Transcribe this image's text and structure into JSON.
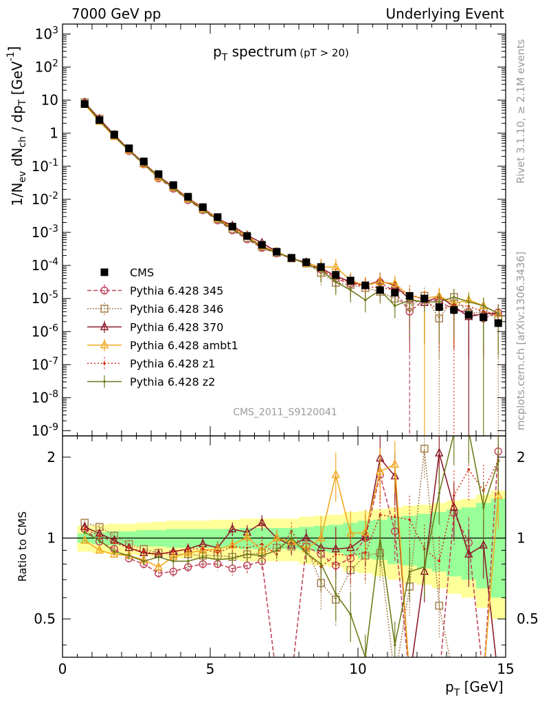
{
  "header": {
    "left": "7000 GeV pp",
    "right": "Underlying Event"
  },
  "side_labels": {
    "rivet": "Rivet 3.1.10, ≥ 2.1M events",
    "mcplots": "mcplots.cern.ch [arXiv:1306.3436]"
  },
  "colors": {
    "CMS": "#000000",
    "p345": "#c0445a",
    "p346": "#a68150",
    "p370": "#8b1a2a",
    "ambt1": "#f0a820",
    "z1": "#d42a10",
    "z2": "#6f7a1a",
    "band_outer": "#ffff99",
    "band_inner": "#99ff99"
  },
  "chart_data": [
    {
      "type": "line",
      "title": "pT spectrum",
      "title_main": "p",
      "title_sub": "T",
      "title_rest": " spectrum",
      "title_cut": "(pT > 20)",
      "ylabel": "1/N_ev dN_ch / dp_T [GeV^-1]",
      "y_scale": "log",
      "ylim": [
        7e-10,
        2000
      ],
      "xlim": [
        0,
        15
      ],
      "ytick_labels": [
        "10^-9",
        "10^-8",
        "10^-7",
        "10^-6",
        "10^-5",
        "10^-4",
        "10^-3",
        "10^-2",
        "10^-1",
        "1",
        "10",
        "10^2",
        "10^3"
      ],
      "analysis_label": "CMS_2011_S9120041",
      "legend_position": "middle-left",
      "x": [
        0.75,
        1.25,
        1.75,
        2.25,
        2.75,
        3.25,
        3.75,
        4.25,
        4.75,
        5.25,
        5.75,
        6.25,
        6.75,
        7.25,
        7.75,
        8.25,
        8.75,
        9.25,
        9.75,
        10.25,
        10.75,
        11.25,
        11.75,
        12.25,
        12.75,
        13.25,
        13.75,
        14.25,
        14.75
      ],
      "series": [
        {
          "name": "CMS",
          "key": "CMS",
          "values": [
            7.6,
            2.5,
            0.9,
            0.35,
            0.14,
            0.058,
            0.027,
            0.012,
            0.0058,
            0.0029,
            0.0015,
            0.00078,
            0.00042,
            0.00026,
            0.00017,
            0.000125,
            9e-05,
            5.2e-05,
            3.5e-05,
            2.5e-05,
            1.8e-05,
            1.5e-05,
            1.2e-05,
            1e-05,
            5.5e-06,
            4.5e-06,
            3.2e-06,
            2.7e-06,
            1.8e-06
          ]
        },
        {
          "name": "Pythia 6.428 345",
          "key": "p345",
          "values": [
            8.1,
            2.45,
            0.84,
            0.29,
            0.115,
            0.043,
            0.021,
            0.0094,
            0.0047,
            0.0023,
            0.00115,
            0.00062,
            0.00034,
            0.00023,
            0.000165,
            0.000115,
            7.5e-05,
            4e-05,
            2.8e-05,
            2.5e-05,
            3.1e-05,
            1.6e-05,
            4e-06,
            9.2e-06,
            8.5e-06,
            4.4e-06,
            4e-06,
            2.5e-06,
            3.8e-06
          ]
        },
        {
          "name": "Pythia 6.428 346",
          "key": "p346",
          "values": [
            8.6,
            2.75,
            0.92,
            0.33,
            0.125,
            0.051,
            0.023,
            0.0105,
            0.005,
            0.0025,
            0.00128,
            0.00068,
            0.00037,
            0.00024,
            0.000165,
            0.000115,
            6e-05,
            3e-05,
            2.6e-05,
            2.1e-05,
            1.6e-05,
            1e-05,
            5.5e-06,
            1.2e-05,
            2.5e-06,
            1.1e-05,
            3.5e-06,
            4e-06,
            2.5e-06
          ]
        },
        {
          "name": "Pythia 6.428 370",
          "key": "p370",
          "values": [
            8.4,
            2.7,
            0.88,
            0.31,
            0.122,
            0.05,
            0.024,
            0.0109,
            0.0055,
            0.0026,
            0.0016,
            0.00082,
            0.00048,
            0.00026,
            0.00016,
            0.000125,
            8.2e-05,
            4.8e-05,
            3.2e-05,
            2.5e-05,
            3.4e-05,
            2.5e-05,
            9.5e-06,
            7.5e-06,
            1.15e-05,
            5.8e-06,
            2.8e-06,
            3.5e-06,
            3.6e-06
          ]
        },
        {
          "name": "Pythia 6.428 ambt1",
          "key": "ambt1",
          "values": [
            7.4,
            2.25,
            0.78,
            0.3,
            0.115,
            0.045,
            0.023,
            0.0105,
            0.0052,
            0.0026,
            0.0014,
            0.00078,
            0.00038,
            0.00026,
            0.000165,
            0.000115,
            9e-05,
            9e-05,
            3.5e-05,
            2.5e-05,
            3.2e-05,
            2.8e-05,
            1.2e-05,
            1e-05,
            1.2e-05,
            7e-06,
            9e-06,
            6e-06,
            3.5e-06
          ]
        },
        {
          "name": "Pythia 6.428 z1",
          "key": "z1",
          "values": [
            8.2,
            2.6,
            0.86,
            0.32,
            0.125,
            0.05,
            0.024,
            0.0108,
            0.0053,
            0.0026,
            0.0014,
            0.00072,
            0.0004,
            0.00023,
            0.00018,
            0.00011,
            7e-05,
            4.5e-05,
            3e-05,
            2.2e-05,
            2.2e-05,
            1.8e-05,
            1.4e-05,
            9e-06,
            4.5e-06,
            6.5e-06,
            5.8e-06,
            4e-06,
            3.5e-06
          ]
        },
        {
          "name": "Pythia 6.428 z2",
          "key": "z2",
          "values": [
            8.0,
            2.45,
            0.8,
            0.3,
            0.115,
            0.049,
            0.022,
            0.0099,
            0.0049,
            0.0024,
            0.00125,
            0.00068,
            0.00036,
            0.00024,
            0.00017,
            0.00011,
            7.2e-05,
            3.2e-05,
            1.8e-05,
            9e-06,
            1.8e-05,
            6e-06,
            9e-06,
            7.8e-06,
            8e-06,
            1.1e-05,
            8e-06,
            6e-06,
            3.5e-06
          ]
        }
      ]
    },
    {
      "type": "line",
      "title": "",
      "ylabel": "Ratio to CMS",
      "xlabel": "p_T [GeV]",
      "y_scale": "log",
      "ylim": [
        0.36,
        2.4
      ],
      "xlim": [
        0,
        15
      ],
      "xtick_labels": [
        "0",
        "5",
        "10",
        "15"
      ],
      "ytick_labels": [
        "0.5",
        "1",
        "2"
      ],
      "x": [
        0.75,
        1.25,
        1.75,
        2.25,
        2.75,
        3.25,
        3.75,
        4.25,
        4.75,
        5.25,
        5.75,
        6.25,
        6.75,
        7.25,
        7.75,
        8.25,
        8.75,
        9.25,
        9.75,
        10.25,
        10.75,
        11.25,
        11.75,
        12.25,
        12.75,
        13.25,
        13.75,
        14.25,
        14.75
      ],
      "bands": {
        "outer": [
          0.11,
          0.12,
          0.13,
          0.13,
          0.14,
          0.15,
          0.16,
          0.16,
          0.16,
          0.17,
          0.17,
          0.18,
          0.18,
          0.18,
          0.18,
          0.2,
          0.21,
          0.22,
          0.25,
          0.26,
          0.28,
          0.3,
          0.32,
          0.33,
          0.35,
          0.38,
          0.4,
          0.45,
          0.5
        ],
        "inner": [
          0.04,
          0.05,
          0.06,
          0.06,
          0.07,
          0.07,
          0.08,
          0.08,
          0.08,
          0.08,
          0.08,
          0.09,
          0.09,
          0.09,
          0.09,
          0.1,
          0.11,
          0.12,
          0.14,
          0.16,
          0.17,
          0.2,
          0.21,
          0.23,
          0.25,
          0.28,
          0.3,
          0.35,
          0.4
        ]
      },
      "series": [
        {
          "name": "Pythia 6.428 345",
          "key": "p345",
          "values": [
            1.08,
            0.97,
            0.91,
            0.84,
            0.8,
            0.74,
            0.75,
            0.78,
            0.8,
            0.8,
            0.77,
            0.79,
            0.82,
            null,
            null,
            0.93,
            0.87,
            0.79,
            0.84,
            1.0,
            1.72,
            1.06,
            null,
            null,
            null,
            1.24,
            0.96,
            null,
            2.1
          ]
        },
        {
          "name": "Pythia 6.428 346",
          "key": "p346",
          "values": [
            1.14,
            1.1,
            1.02,
            0.95,
            0.91,
            0.88,
            0.87,
            0.87,
            0.86,
            0.86,
            0.85,
            0.87,
            0.88,
            0.92,
            0.93,
            0.93,
            0.68,
            0.59,
            0.76,
            0.86,
            0.88,
            null,
            0.66,
            2.15,
            0.56,
            null,
            null,
            null,
            null
          ]
        },
        {
          "name": "Pythia 6.428 370",
          "key": "p370",
          "values": [
            1.1,
            1.04,
            0.98,
            0.92,
            0.88,
            0.87,
            0.89,
            0.91,
            0.95,
            0.92,
            1.08,
            1.05,
            1.14,
            1.0,
            0.94,
            1.0,
            0.92,
            0.91,
            0.92,
            1.01,
            1.98,
            1.7,
            null,
            0.75,
            2.07,
            1.3,
            0.87,
            0.94,
            null
          ]
        },
        {
          "name": "Pythia 6.428 ambt1",
          "key": "ambt1",
          "values": [
            0.98,
            0.9,
            0.87,
            0.86,
            0.83,
            0.78,
            0.85,
            0.88,
            0.9,
            0.91,
            0.94,
            1.01,
            0.9,
            1.0,
            0.97,
            0.91,
            1.0,
            1.72,
            1.04,
            1.05,
            1.77,
            1.88,
            null,
            null,
            null,
            null,
            null,
            null,
            1.44
          ]
        },
        {
          "name": "Pythia 6.428 z1",
          "key": "z1",
          "values": [
            1.08,
            1.02,
            0.96,
            0.92,
            0.89,
            0.87,
            0.89,
            0.91,
            0.91,
            0.88,
            0.93,
            0.92,
            0.95,
            0.87,
            1.06,
            0.88,
            0.78,
            0.87,
            0.86,
            0.88,
            1.22,
            1.2,
            1.17,
            0.91,
            0.82,
            1.44,
            1.8,
            1.5,
            1.95
          ]
        },
        {
          "name": "Pythia 6.428 z2",
          "key": "z2",
          "values": [
            1.05,
            0.98,
            0.89,
            0.86,
            0.82,
            0.85,
            0.82,
            0.82,
            0.85,
            0.83,
            0.84,
            0.87,
            0.86,
            0.9,
            1.0,
            0.88,
            0.8,
            0.62,
            0.52,
            0.36,
            1.0,
            0.4,
            0.75,
            0.78,
            1.47,
            2.45,
            2.5,
            1.3,
            1.93
          ]
        }
      ]
    }
  ]
}
